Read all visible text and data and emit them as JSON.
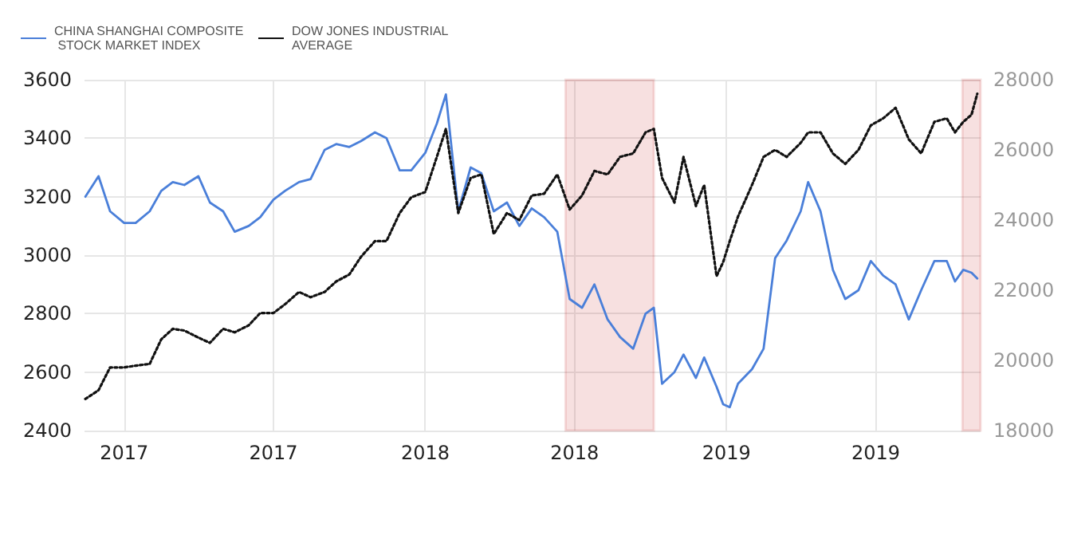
{
  "chart_data": {
    "type": "line",
    "x": [
      "2016-11-15",
      "2016-12-01",
      "2016-12-15",
      "2017-01-01",
      "2017-01-15",
      "2017-02-01",
      "2017-02-15",
      "2017-03-01",
      "2017-03-15",
      "2017-04-01",
      "2017-04-15",
      "2017-05-01",
      "2017-05-15",
      "2017-06-01",
      "2017-06-15",
      "2017-07-01",
      "2017-07-15",
      "2017-08-01",
      "2017-08-15",
      "2017-09-01",
      "2017-09-15",
      "2017-10-01",
      "2017-10-15",
      "2017-11-01",
      "2017-11-15",
      "2017-12-01",
      "2017-12-15",
      "2018-01-01",
      "2018-01-15",
      "2018-01-26",
      "2018-02-10",
      "2018-02-25",
      "2018-03-10",
      "2018-03-25",
      "2018-04-10",
      "2018-04-25",
      "2018-05-10",
      "2018-05-25",
      "2018-06-10",
      "2018-06-25",
      "2018-07-10",
      "2018-07-25",
      "2018-08-10",
      "2018-08-25",
      "2018-09-10",
      "2018-09-25",
      "2018-10-05",
      "2018-10-15",
      "2018-10-30",
      "2018-11-10",
      "2018-11-25",
      "2018-12-05",
      "2018-12-20",
      "2018-12-28",
      "2019-01-05",
      "2019-01-15",
      "2019-02-01",
      "2019-02-15",
      "2019-03-01",
      "2019-03-15",
      "2019-04-01",
      "2019-04-10",
      "2019-04-25",
      "2019-05-10",
      "2019-05-25",
      "2019-06-10",
      "2019-06-25",
      "2019-07-10",
      "2019-07-25",
      "2019-08-10",
      "2019-08-25",
      "2019-09-10",
      "2019-09-25",
      "2019-10-05",
      "2019-10-15",
      "2019-10-25",
      "2019-11-01"
    ],
    "series": [
      {
        "name": "CHINA SHANGHAI COMPOSITE STOCK MARKET INDEX",
        "color": "#4a7fd9",
        "line_style": "solid",
        "values": [
          3200,
          3270,
          3150,
          3110,
          3110,
          3150,
          3220,
          3250,
          3240,
          3270,
          3180,
          3150,
          3080,
          3100,
          3130,
          3190,
          3220,
          3250,
          3260,
          3360,
          3380,
          3370,
          3390,
          3420,
          3400,
          3290,
          3290,
          3350,
          3450,
          3550,
          3150,
          3300,
          3280,
          3150,
          3180,
          3100,
          3160,
          3130,
          3080,
          2850,
          2820,
          2900,
          2780,
          2720,
          2680,
          2800,
          2820,
          2560,
          2600,
          2660,
          2580,
          2650,
          2550,
          2490,
          2480,
          2560,
          2610,
          2680,
          2990,
          3050,
          3150,
          3250,
          3150,
          2950,
          2850,
          2880,
          2980,
          2930,
          2900,
          2780,
          2880,
          2980,
          2980,
          2910,
          2950,
          2940,
          2920
        ]
      },
      {
        "name": "DOW JONES INDUSTRIAL AVERAGE",
        "color": "#111111",
        "line_style": "dotted",
        "axis": "y2",
        "values": [
          18900,
          19150,
          19800,
          19800,
          19850,
          19900,
          20600,
          20900,
          20850,
          20650,
          20500,
          20900,
          20800,
          21000,
          21350,
          21350,
          21600,
          21950,
          21800,
          21950,
          22250,
          22450,
          22950,
          23400,
          23400,
          24200,
          24650,
          24800,
          25800,
          26600,
          24200,
          25200,
          25300,
          23600,
          24200,
          24000,
          24700,
          24750,
          25300,
          24300,
          24700,
          25400,
          25300,
          25800,
          25900,
          26500,
          26600,
          25200,
          24500,
          25800,
          24400,
          25000,
          22400,
          22800,
          23400,
          24100,
          25000,
          25800,
          26000,
          25800,
          26200,
          26500,
          26500,
          25900,
          25600,
          26000,
          26700,
          26900,
          27200,
          26300,
          25900,
          26800,
          26900,
          26500,
          26800,
          27000,
          27600
        ]
      }
    ],
    "xlim": [
      "2016-11-14",
      "2019-11-05"
    ],
    "xticks": [
      {
        "value": "2017-01-01",
        "label": "2017"
      },
      {
        "value": "2017-07-01",
        "label": "2017"
      },
      {
        "value": "2018-01-01",
        "label": "2018"
      },
      {
        "value": "2018-07-01",
        "label": "2018"
      },
      {
        "value": "2019-01-01",
        "label": "2019"
      },
      {
        "value": "2019-07-01",
        "label": "2019"
      }
    ],
    "ylim": [
      2400,
      3600
    ],
    "yticks": [
      2400,
      2600,
      2800,
      3000,
      3200,
      3400,
      3600
    ],
    "y2lim": [
      18000,
      28000
    ],
    "y2ticks": [
      18000,
      20000,
      22000,
      24000,
      26000,
      28000
    ],
    "bands": [
      {
        "axis": "x",
        "from": "2018-06-20",
        "to": "2018-10-05",
        "color": "#c00000"
      },
      {
        "axis": "x",
        "from": "2019-10-14",
        "to": "2019-11-05",
        "color": "#c00000"
      }
    ],
    "grid": true,
    "legend": "top left",
    "marker": "none"
  }
}
